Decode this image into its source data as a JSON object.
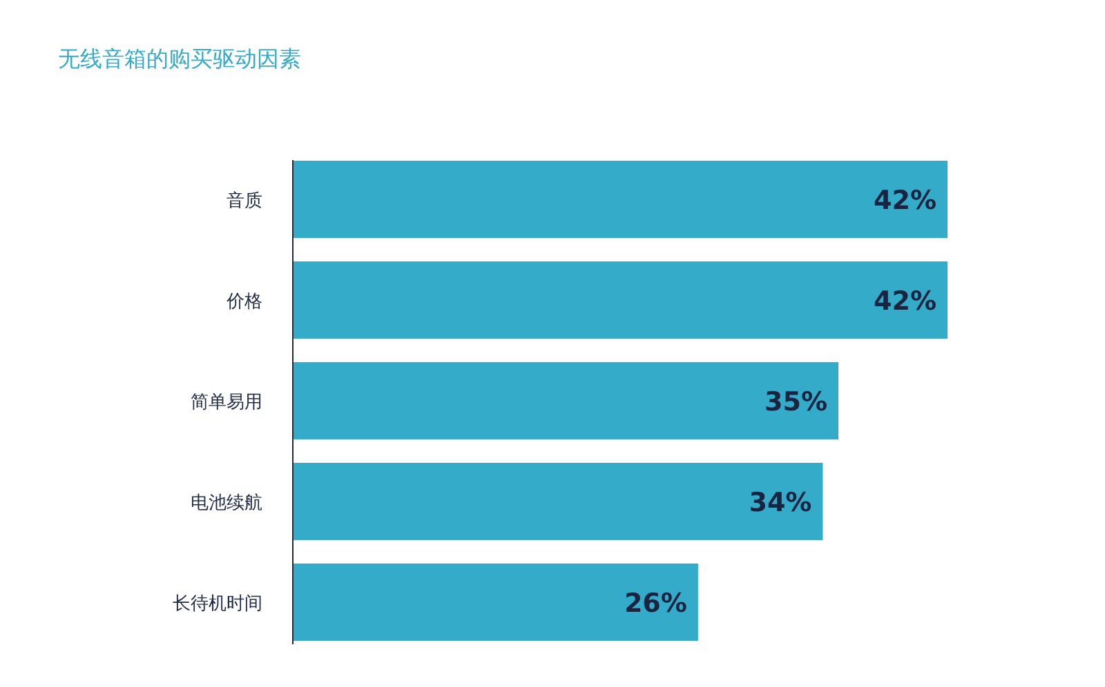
{
  "chart_data": {
    "type": "bar",
    "orientation": "horizontal",
    "title": "无线音箱的购买驱动因素",
    "categories": [
      "音质",
      "价格",
      "简单易用",
      "电池续航",
      "长待机时间"
    ],
    "values": [
      42,
      42,
      35,
      34,
      26
    ],
    "value_labels": [
      "42%",
      "42%",
      "35%",
      "34%",
      "26%"
    ],
    "color": "#33abc9"
  }
}
